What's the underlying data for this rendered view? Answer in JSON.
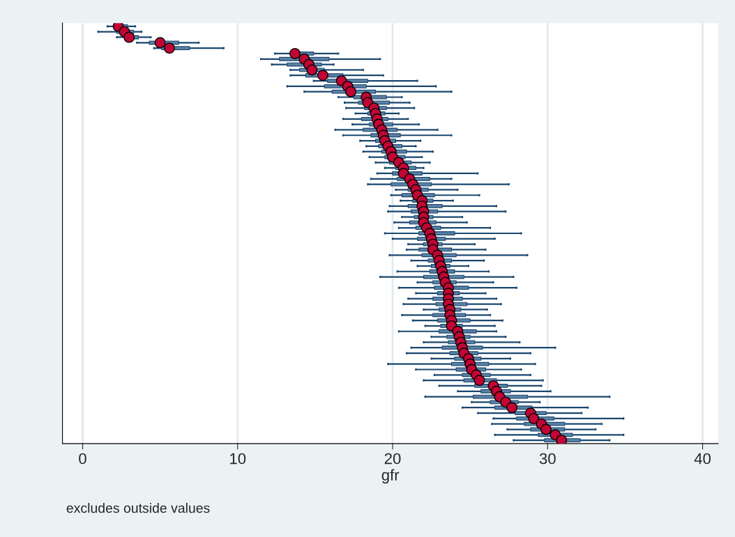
{
  "chart_data": {
    "type": "box",
    "orientation": "horizontal",
    "xlabel": "gfr",
    "annotations": [
      "excludes outside values"
    ],
    "xlim": [
      -1.3,
      41
    ],
    "xticks": [
      0,
      10,
      20,
      30,
      40
    ],
    "grid": "x",
    "marker": "circle",
    "categories": [
      null,
      null,
      null,
      null,
      null,
      null,
      null,
      null,
      null,
      null,
      null,
      null,
      null,
      null,
      null,
      null,
      null,
      null,
      null,
      null,
      null,
      null,
      null,
      null,
      null,
      null,
      null,
      null,
      null,
      null,
      null,
      null,
      null,
      null,
      null,
      null,
      null,
      null,
      null,
      null,
      null,
      null,
      null,
      null,
      null,
      null,
      null,
      null,
      null,
      null,
      null,
      null,
      null,
      null,
      null,
      null,
      null,
      null,
      null,
      null,
      null,
      null,
      null,
      null,
      null,
      null,
      null,
      null,
      null,
      null,
      null,
      null,
      null,
      null,
      null,
      null,
      null
    ],
    "series": [
      {
        "color": "#1a476f",
        "boxes": [
          {
            "low": 1.6,
            "q1": 2.1,
            "median": 2.3,
            "q3": 2.9,
            "high": 3.4
          },
          {
            "low": 1.0,
            "q1": 2.2,
            "median": 2.7,
            "q3": 3.3,
            "high": 3.8
          },
          {
            "low": 2.2,
            "q1": 2.7,
            "median": 3.0,
            "q3": 3.6,
            "high": 4.4
          },
          {
            "low": 3.5,
            "q1": 4.3,
            "median": 5.0,
            "q3": 6.2,
            "high": 7.5
          },
          {
            "low": 4.6,
            "q1": 5.1,
            "median": 5.6,
            "q3": 6.9,
            "high": 9.1
          },
          {
            "low": 12.4,
            "q1": 13.5,
            "median": 13.7,
            "q3": 14.9,
            "high": 16.5
          },
          {
            "low": 11.5,
            "q1": 12.7,
            "median": 14.3,
            "q3": 15.9,
            "high": 19.2
          },
          {
            "low": 12.2,
            "q1": 13.2,
            "median": 14.6,
            "q3": 15.4,
            "high": 16.2
          },
          {
            "low": 13.4,
            "q1": 14.0,
            "median": 14.8,
            "q3": 15.6,
            "high": 18.1
          },
          {
            "low": 13.4,
            "q1": 14.4,
            "median": 15.5,
            "q3": 16.8,
            "high": 19.4
          },
          {
            "low": 14.9,
            "q1": 15.8,
            "median": 16.7,
            "q3": 18.4,
            "high": 21.6
          },
          {
            "low": 13.2,
            "q1": 15.6,
            "median": 17.1,
            "q3": 18.3,
            "high": 22.8
          },
          {
            "low": 14.3,
            "q1": 16.1,
            "median": 17.3,
            "q3": 18.9,
            "high": 23.8
          },
          {
            "low": 16.5,
            "q1": 17.5,
            "median": 18.3,
            "q3": 19.6,
            "high": 20.6
          },
          {
            "low": 16.9,
            "q1": 17.8,
            "median": 18.4,
            "q3": 19.8,
            "high": 21.1
          },
          {
            "low": 17.0,
            "q1": 18.2,
            "median": 18.8,
            "q3": 19.6,
            "high": 21.4
          },
          {
            "low": 17.6,
            "q1": 18.4,
            "median": 18.9,
            "q3": 19.5,
            "high": 20.4
          },
          {
            "low": 16.8,
            "q1": 18.0,
            "median": 19.0,
            "q3": 19.7,
            "high": 21.0
          },
          {
            "low": 17.4,
            "q1": 18.5,
            "median": 19.1,
            "q3": 20.0,
            "high": 21.7
          },
          {
            "low": 16.3,
            "q1": 18.1,
            "median": 19.3,
            "q3": 20.3,
            "high": 22.9
          },
          {
            "low": 16.8,
            "q1": 18.6,
            "median": 19.4,
            "q3": 20.5,
            "high": 23.8
          },
          {
            "low": 17.9,
            "q1": 18.9,
            "median": 19.5,
            "q3": 20.2,
            "high": 21.8
          },
          {
            "low": 18.3,
            "q1": 19.1,
            "median": 19.7,
            "q3": 20.6,
            "high": 21.5
          },
          {
            "low": 18.1,
            "q1": 19.3,
            "median": 19.9,
            "q3": 20.9,
            "high": 22.6
          },
          {
            "low": 18.5,
            "q1": 19.5,
            "median": 20.0,
            "q3": 20.8,
            "high": 21.9
          },
          {
            "low": 18.9,
            "q1": 19.8,
            "median": 20.4,
            "q3": 21.2,
            "high": 22.4
          },
          {
            "low": 19.5,
            "q1": 20.2,
            "median": 20.7,
            "q3": 21.5,
            "high": 22.0
          },
          {
            "low": 19.0,
            "q1": 20.0,
            "median": 20.7,
            "q3": 21.9,
            "high": 25.5
          },
          {
            "low": 18.6,
            "q1": 20.3,
            "median": 21.1,
            "q3": 22.4,
            "high": 23.8
          },
          {
            "low": 18.4,
            "q1": 19.9,
            "median": 21.3,
            "q3": 22.5,
            "high": 27.5
          },
          {
            "low": 20.2,
            "q1": 21.0,
            "median": 21.5,
            "q3": 22.3,
            "high": 24.2
          },
          {
            "low": 19.9,
            "q1": 20.6,
            "median": 21.6,
            "q3": 22.7,
            "high": 25.6
          },
          {
            "low": 20.5,
            "q1": 21.3,
            "median": 21.9,
            "q3": 22.6,
            "high": 23.9
          },
          {
            "low": 19.8,
            "q1": 21.0,
            "median": 21.9,
            "q3": 23.2,
            "high": 26.7
          },
          {
            "low": 19.7,
            "q1": 21.2,
            "median": 22.0,
            "q3": 22.9,
            "high": 27.3
          },
          {
            "low": 20.6,
            "q1": 21.4,
            "median": 22.0,
            "q3": 22.6,
            "high": 24.5
          },
          {
            "low": 20.1,
            "q1": 21.1,
            "median": 22.0,
            "q3": 22.8,
            "high": 24.8
          },
          {
            "low": 20.4,
            "q1": 21.5,
            "median": 22.2,
            "q3": 23.1,
            "high": 26.3
          },
          {
            "low": 19.5,
            "q1": 21.7,
            "median": 22.4,
            "q3": 24.0,
            "high": 28.3
          },
          {
            "low": 20.0,
            "q1": 21.6,
            "median": 22.5,
            "q3": 23.4,
            "high": 26.6
          },
          {
            "low": 21.0,
            "q1": 22.0,
            "median": 22.6,
            "q3": 23.2,
            "high": 25.3
          },
          {
            "low": 20.9,
            "q1": 21.7,
            "median": 22.6,
            "q3": 23.8,
            "high": 26.0
          },
          {
            "low": 19.8,
            "q1": 21.9,
            "median": 22.9,
            "q3": 24.1,
            "high": 28.7
          },
          {
            "low": 21.2,
            "q1": 22.3,
            "median": 23.0,
            "q3": 23.8,
            "high": 25.9
          },
          {
            "low": 21.6,
            "q1": 22.5,
            "median": 23.1,
            "q3": 23.7,
            "high": 24.9
          },
          {
            "low": 20.3,
            "q1": 22.4,
            "median": 23.2,
            "q3": 24.0,
            "high": 26.2
          },
          {
            "low": 19.2,
            "q1": 22.0,
            "median": 23.3,
            "q3": 24.6,
            "high": 27.8
          },
          {
            "low": 21.6,
            "q1": 22.6,
            "median": 23.4,
            "q3": 24.1,
            "high": 26.5
          },
          {
            "low": 20.4,
            "q1": 22.7,
            "median": 23.6,
            "q3": 24.9,
            "high": 28.0
          },
          {
            "low": 21.5,
            "q1": 22.9,
            "median": 23.6,
            "q3": 24.3,
            "high": 26.0
          },
          {
            "low": 21.0,
            "q1": 22.6,
            "median": 23.6,
            "q3": 24.5,
            "high": 26.7
          },
          {
            "low": 20.7,
            "q1": 22.8,
            "median": 23.6,
            "q3": 24.8,
            "high": 27.0
          },
          {
            "low": 22.0,
            "q1": 23.0,
            "median": 23.7,
            "q3": 24.4,
            "high": 26.1
          },
          {
            "low": 20.6,
            "q1": 22.6,
            "median": 23.7,
            "q3": 24.7,
            "high": 26.3
          },
          {
            "low": 21.3,
            "q1": 22.9,
            "median": 23.8,
            "q3": 25.0,
            "high": 27.1
          },
          {
            "low": 22.1,
            "q1": 23.1,
            "median": 23.8,
            "q3": 24.5,
            "high": 26.6
          },
          {
            "low": 20.4,
            "q1": 23.0,
            "median": 24.2,
            "q3": 25.4,
            "high": 26.7
          },
          {
            "low": 22.5,
            "q1": 23.5,
            "median": 24.3,
            "q3": 25.0,
            "high": 27.3
          },
          {
            "low": 22.0,
            "q1": 23.6,
            "median": 24.4,
            "q3": 25.3,
            "high": 28.2
          },
          {
            "low": 21.2,
            "q1": 23.2,
            "median": 24.5,
            "q3": 25.8,
            "high": 30.5
          },
          {
            "low": 20.9,
            "q1": 23.7,
            "median": 24.6,
            "q3": 25.5,
            "high": 28.9
          },
          {
            "low": 22.5,
            "q1": 24.0,
            "median": 24.9,
            "q3": 25.7,
            "high": 27.6
          },
          {
            "low": 19.7,
            "q1": 23.8,
            "median": 25.0,
            "q3": 26.2,
            "high": 29.2
          },
          {
            "low": 21.5,
            "q1": 24.1,
            "median": 25.1,
            "q3": 26.0,
            "high": 28.3
          },
          {
            "low": 22.7,
            "q1": 24.5,
            "median": 25.4,
            "q3": 26.3,
            "high": 28.9
          },
          {
            "low": 22.0,
            "q1": 24.6,
            "median": 25.6,
            "q3": 26.7,
            "high": 29.7
          },
          {
            "low": 23.0,
            "q1": 25.3,
            "median": 26.5,
            "q3": 27.4,
            "high": 29.6
          },
          {
            "low": 24.2,
            "q1": 25.7,
            "median": 26.7,
            "q3": 27.6,
            "high": 30.2
          },
          {
            "low": 22.1,
            "q1": 25.2,
            "median": 26.9,
            "q3": 28.7,
            "high": 34.0
          },
          {
            "low": 25.1,
            "q1": 26.3,
            "median": 27.3,
            "q3": 28.1,
            "high": 29.5
          },
          {
            "low": 24.5,
            "q1": 26.6,
            "median": 27.7,
            "q3": 29.0,
            "high": 32.6
          },
          {
            "low": 25.5,
            "q1": 27.9,
            "median": 28.9,
            "q3": 29.9,
            "high": 32.2
          },
          {
            "low": 26.5,
            "q1": 28.0,
            "median": 29.1,
            "q3": 30.4,
            "high": 34.9
          },
          {
            "low": 26.4,
            "q1": 28.5,
            "median": 29.6,
            "q3": 31.1,
            "high": 33.5
          },
          {
            "low": 27.4,
            "q1": 28.9,
            "median": 29.9,
            "q3": 31.1,
            "high": 33.1
          },
          {
            "low": 26.6,
            "q1": 29.4,
            "median": 30.5,
            "q3": 31.6,
            "high": 34.9
          },
          {
            "low": 27.8,
            "q1": 29.8,
            "median": 30.9,
            "q3": 32.1,
            "high": 34.0
          }
        ]
      },
      {
        "type": "scatter",
        "color": "#c10534",
        "values": [
          2.3,
          2.7,
          3.0,
          5.0,
          5.6,
          13.7,
          14.3,
          14.6,
          14.8,
          15.5,
          16.7,
          17.1,
          17.3,
          18.3,
          18.4,
          18.8,
          18.9,
          19.0,
          19.1,
          19.3,
          19.4,
          19.5,
          19.7,
          19.9,
          20.0,
          20.4,
          20.7,
          20.7,
          21.1,
          21.3,
          21.5,
          21.6,
          21.9,
          21.9,
          22.0,
          22.0,
          22.0,
          22.2,
          22.4,
          22.5,
          22.6,
          22.6,
          22.9,
          23.0,
          23.1,
          23.2,
          23.3,
          23.4,
          23.6,
          23.6,
          23.6,
          23.6,
          23.7,
          23.7,
          23.8,
          23.8,
          24.2,
          24.3,
          24.4,
          24.5,
          24.6,
          24.9,
          25.0,
          25.1,
          25.4,
          25.6,
          26.5,
          26.7,
          26.9,
          27.3,
          27.7,
          28.9,
          29.1,
          29.6,
          29.9,
          30.5,
          30.9
        ]
      }
    ]
  }
}
